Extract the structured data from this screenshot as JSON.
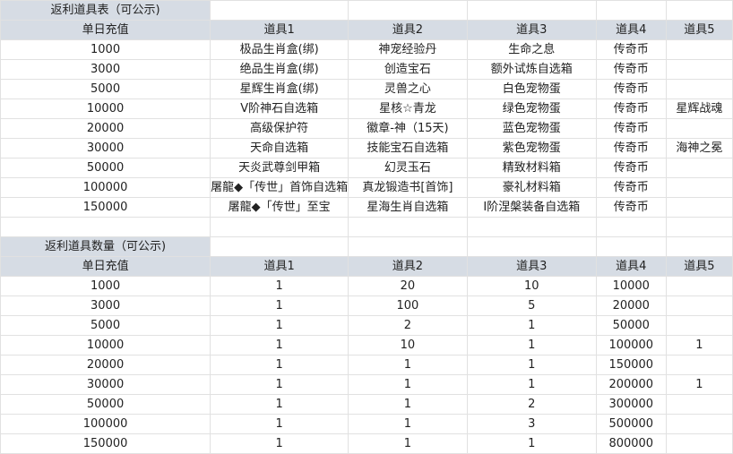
{
  "colors": {
    "header_bg": "#d6dce4",
    "grid": "#e1e1e1"
  },
  "table1": {
    "title": "返利道具表（可公示)",
    "headers": [
      "单日充值",
      "道具1",
      "道具2",
      "道具3",
      "道具4",
      "道具5"
    ],
    "rows": [
      [
        "1000",
        "极品生肖盒(绑)",
        "神宠经验丹",
        "生命之息",
        "传奇币",
        ""
      ],
      [
        "3000",
        "绝品生肖盒(绑)",
        "创造宝石",
        "额外试炼自选箱",
        "传奇币",
        ""
      ],
      [
        "5000",
        "星辉生肖盒(绑)",
        "灵兽之心",
        "白色宠物蛋",
        "传奇币",
        ""
      ],
      [
        "10000",
        "Ⅴ阶神石自选箱",
        "星核☆青龙",
        "绿色宠物蛋",
        "传奇币",
        "星辉战魂"
      ],
      [
        "20000",
        "高级保护符",
        "徽章-神（15天)",
        "蓝色宠物蛋",
        "传奇币",
        ""
      ],
      [
        "30000",
        "天命自选箱",
        "技能宝石自选箱",
        "紫色宠物蛋",
        "传奇币",
        "海神之冕"
      ],
      [
        "50000",
        "天炎武尊剑甲箱",
        "幻灵玉石",
        "精致材料箱",
        "传奇币",
        ""
      ],
      [
        "100000",
        "屠龍◆「传世」首饰自选箱",
        "真龙锻造书[首饰]",
        "豪礼材料箱",
        "传奇币",
        ""
      ],
      [
        "150000",
        "屠龍◆「传世」至宝",
        "星海生肖自选箱",
        "Ⅰ阶涅槃装备自选箱",
        "传奇币",
        ""
      ]
    ]
  },
  "table2": {
    "title": "返利道具数量（可公示)",
    "headers": [
      "单日充值",
      "道具1",
      "道具2",
      "道具3",
      "道具4",
      "道具5"
    ],
    "rows": [
      [
        "1000",
        "1",
        "20",
        "10",
        "10000",
        ""
      ],
      [
        "3000",
        "1",
        "100",
        "5",
        "20000",
        ""
      ],
      [
        "5000",
        "1",
        "2",
        "1",
        "50000",
        ""
      ],
      [
        "10000",
        "1",
        "10",
        "1",
        "100000",
        "1"
      ],
      [
        "20000",
        "1",
        "1",
        "1",
        "150000",
        ""
      ],
      [
        "30000",
        "1",
        "1",
        "1",
        "200000",
        "1"
      ],
      [
        "50000",
        "1",
        "1",
        "2",
        "300000",
        ""
      ],
      [
        "100000",
        "1",
        "1",
        "3",
        "500000",
        ""
      ],
      [
        "150000",
        "1",
        "1",
        "1",
        "800000",
        ""
      ]
    ]
  }
}
